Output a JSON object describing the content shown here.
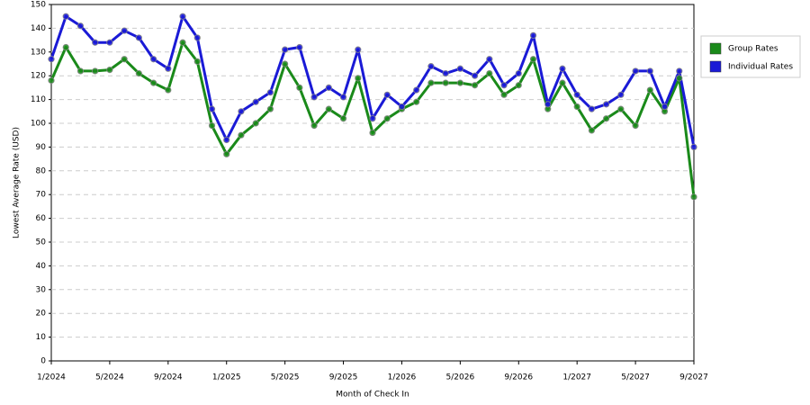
{
  "chart_data": {
    "type": "line",
    "x_label": "Month of Check In",
    "y_label": "Lowest Average Rate (USD)",
    "categories": [
      "1/2024",
      null,
      null,
      null,
      "5/2024",
      null,
      null,
      null,
      "9/2024",
      null,
      null,
      null,
      "1/2025",
      null,
      null,
      null,
      "5/2025",
      null,
      null,
      null,
      "9/2025",
      null,
      null,
      null,
      "1/2026",
      null,
      null,
      null,
      "5/2026",
      null,
      null,
      null,
      "9/2026",
      null,
      null,
      null,
      "1/2027",
      null,
      null,
      null,
      "5/2027",
      null,
      null,
      null,
      "9/2027"
    ],
    "series": [
      {
        "name": "Group Rates",
        "color": "#1a8a1a",
        "values": [
          118,
          132,
          122,
          122,
          122.5,
          127,
          121,
          117,
          114,
          134,
          126,
          99,
          87,
          95,
          100,
          106,
          125,
          115,
          99,
          106,
          102,
          119,
          96,
          102,
          106,
          109,
          117,
          117,
          117,
          116,
          121,
          112,
          116,
          127,
          106,
          117,
          107,
          97,
          102,
          106,
          99,
          114,
          105,
          119,
          69
        ]
      },
      {
        "name": "Individual Rates",
        "color": "#1a1ad6",
        "values": [
          127,
          145,
          141,
          134,
          134,
          139,
          136,
          127,
          123,
          145,
          136,
          106,
          93,
          105,
          109,
          113,
          131,
          132,
          111,
          115,
          111,
          131,
          102,
          112,
          107,
          114,
          124,
          121,
          123,
          120,
          127,
          116,
          121,
          137,
          108,
          123,
          112,
          106,
          108,
          112,
          122,
          122,
          107,
          122,
          90
        ]
      }
    ],
    "ylim": [
      0,
      150
    ],
    "yticks": [
      0,
      10,
      20,
      30,
      40,
      50,
      60,
      70,
      80,
      90,
      100,
      110,
      120,
      130,
      140,
      150
    ],
    "grid": true,
    "legend": "top-right"
  }
}
